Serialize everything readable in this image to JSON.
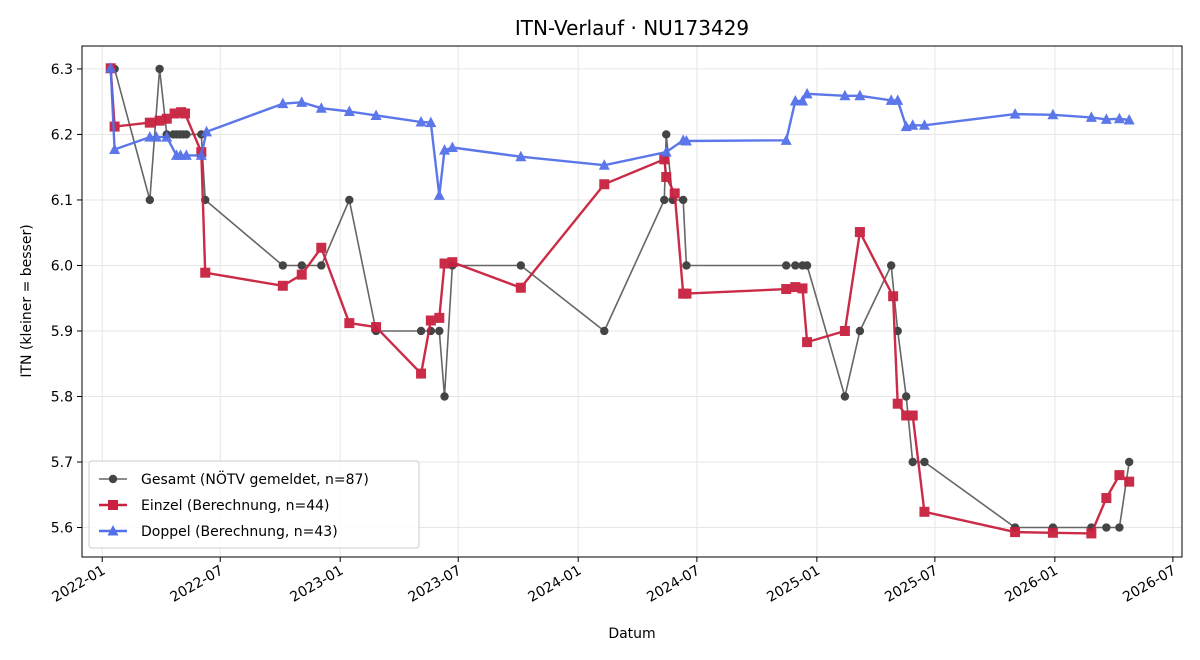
{
  "colors": {
    "gesamt": "#666666",
    "gesamt_marker": "#444444",
    "einzel": "#c8203e",
    "doppel": "#5470e8",
    "grid": "#e6e6e6"
  },
  "chart_data": {
    "type": "line",
    "title": "ITN-Verlauf · NU173429",
    "xlabel": "Datum",
    "ylabel": "ITN  (kleiner = besser)",
    "xlim": [
      "2021-12-01",
      "2026-07-15"
    ],
    "ylim": [
      5.555,
      6.335
    ],
    "grid": true,
    "legend_position": "lower-left",
    "xticks": [
      "2022-01",
      "2022-07",
      "2023-01",
      "2023-07",
      "2024-01",
      "2024-07",
      "2025-01",
      "2025-07",
      "2026-01",
      "2026-07"
    ],
    "yticks": [
      5.6,
      5.7,
      5.8,
      5.9,
      6.0,
      6.1,
      6.2,
      6.3
    ],
    "series": [
      {
        "name": "Gesamt (NÖTV gemeldet, n=87)",
        "marker": "circle",
        "x": [
          "2022-01-20",
          "2022-03-15",
          "2022-03-30",
          "2022-04-10",
          "2022-04-20",
          "2022-04-25",
          "2022-04-30",
          "2022-05-05",
          "2022-05-10",
          "2022-06-02",
          "2022-06-08",
          "2022-10-05",
          "2022-11-03",
          "2022-12-03",
          "2023-01-15",
          "2023-02-25",
          "2023-05-05",
          "2023-05-20",
          "2023-06-02",
          "2023-06-10",
          "2023-06-22",
          "2023-10-05",
          "2024-02-10",
          "2024-05-12",
          "2024-05-15",
          "2024-05-25",
          "2024-06-10",
          "2024-06-15",
          "2024-11-15",
          "2024-11-29",
          "2024-12-10",
          "2024-12-17",
          "2025-02-13",
          "2025-03-08",
          "2025-04-25",
          "2025-05-05",
          "2025-05-18",
          "2025-05-28",
          "2025-06-15",
          "2025-11-01",
          "2025-12-29",
          "2026-02-26",
          "2026-03-21",
          "2026-04-10",
          "2026-04-25"
        ],
        "values": [
          6.3,
          6.1,
          6.3,
          6.2,
          6.2,
          6.2,
          6.2,
          6.2,
          6.2,
          6.2,
          6.1,
          6.0,
          6.0,
          6.0,
          6.1,
          5.9,
          5.9,
          5.9,
          5.9,
          5.8,
          6.0,
          6.0,
          5.9,
          6.1,
          6.2,
          6.1,
          6.1,
          6.0,
          6.0,
          6.0,
          6.0,
          6.0,
          5.8,
          5.9,
          6.0,
          5.9,
          5.8,
          5.7,
          5.7,
          5.6,
          5.6,
          5.6,
          5.6,
          5.6,
          5.7
        ]
      },
      {
        "name": "Einzel (Berechnung, n=44)",
        "marker": "square",
        "x": [
          "2022-01-14",
          "2022-01-20",
          "2022-03-15",
          "2022-03-30",
          "2022-04-10",
          "2022-04-22",
          "2022-05-02",
          "2022-05-08",
          "2022-06-02",
          "2022-06-08",
          "2022-10-05",
          "2022-11-03",
          "2022-12-03",
          "2023-01-15",
          "2023-02-25",
          "2023-05-05",
          "2023-05-20",
          "2023-06-02",
          "2023-06-10",
          "2023-06-22",
          "2023-10-05",
          "2024-02-10",
          "2024-05-12",
          "2024-05-15",
          "2024-05-28",
          "2024-06-10",
          "2024-06-15",
          "2024-11-15",
          "2024-11-29",
          "2024-12-10",
          "2024-12-17",
          "2025-02-13",
          "2025-03-08",
          "2025-04-28",
          "2025-05-05",
          "2025-05-18",
          "2025-05-28",
          "2025-06-15",
          "2025-11-01",
          "2025-12-29",
          "2026-02-26",
          "2026-03-21",
          "2026-04-10",
          "2026-04-25"
        ],
        "values": [
          6.301,
          6.212,
          6.218,
          6.221,
          6.224,
          6.232,
          6.234,
          6.232,
          6.173,
          5.989,
          5.969,
          5.986,
          6.027,
          5.912,
          5.906,
          5.835,
          5.916,
          5.92,
          6.003,
          6.005,
          5.966,
          6.124,
          6.162,
          6.135,
          6.11,
          5.957,
          5.957,
          5.964,
          5.967,
          5.965,
          5.883,
          5.9,
          6.051,
          5.953,
          5.789,
          5.771,
          5.771,
          5.624,
          5.593,
          5.592,
          5.591,
          5.645,
          5.68,
          5.67
        ]
      },
      {
        "name": "Doppel (Berechnung, n=43)",
        "marker": "triangle",
        "x": [
          "2022-01-14",
          "2022-01-20",
          "2022-03-15",
          "2022-03-25",
          "2022-04-10",
          "2022-04-25",
          "2022-05-01",
          "2022-05-10",
          "2022-06-02",
          "2022-06-10",
          "2022-10-05",
          "2022-11-03",
          "2022-12-03",
          "2023-01-15",
          "2023-02-25",
          "2023-05-05",
          "2023-05-20",
          "2023-06-02",
          "2023-06-10",
          "2023-06-22",
          "2023-10-05",
          "2024-02-10",
          "2024-05-15",
          "2024-06-10",
          "2024-06-15",
          "2024-11-15",
          "2024-11-29",
          "2024-12-10",
          "2024-12-17",
          "2025-02-13",
          "2025-03-08",
          "2025-04-25",
          "2025-05-05",
          "2025-05-18",
          "2025-05-28",
          "2025-06-15",
          "2025-11-01",
          "2025-12-29",
          "2026-02-26",
          "2026-03-21",
          "2026-04-10",
          "2026-04-25"
        ],
        "values": [
          6.301,
          6.177,
          6.196,
          6.196,
          6.196,
          6.168,
          6.168,
          6.168,
          6.168,
          6.204,
          6.247,
          6.249,
          6.24,
          6.235,
          6.229,
          6.219,
          6.218,
          6.107,
          6.176,
          6.18,
          6.166,
          6.153,
          6.173,
          6.191,
          6.19,
          6.191,
          6.251,
          6.251,
          6.262,
          6.259,
          6.259,
          6.252,
          6.252,
          6.212,
          6.214,
          6.214,
          6.231,
          6.23,
          6.226,
          6.223,
          6.224,
          6.222
        ]
      }
    ]
  }
}
